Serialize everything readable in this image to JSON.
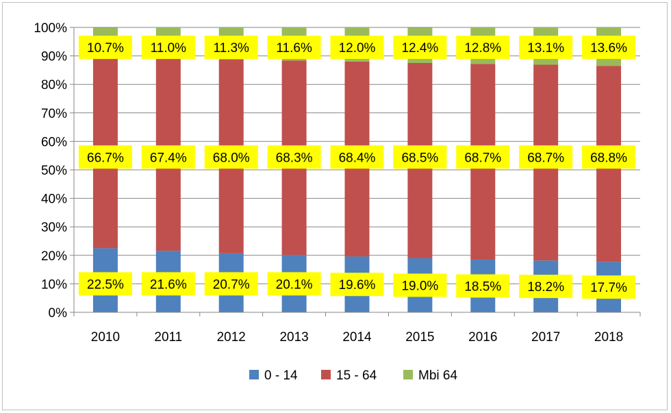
{
  "chart_data": {
    "type": "bar",
    "stacked": true,
    "percent_stacked": true,
    "categories": [
      "2010",
      "2011",
      "2012",
      "2013",
      "2014",
      "2015",
      "2016",
      "2017",
      "2018"
    ],
    "series": [
      {
        "name": "0 - 14",
        "color": "#4f81bd",
        "values": [
          22.5,
          21.6,
          20.7,
          20.1,
          19.6,
          19.0,
          18.5,
          18.2,
          17.7
        ],
        "labels": [
          "22.5%",
          "21.6%",
          "20.7%",
          "20.1%",
          "19.6%",
          "19.0%",
          "18.5%",
          "18.2%",
          "17.7%"
        ]
      },
      {
        "name": "15 - 64",
        "color": "#c0504d",
        "values": [
          66.7,
          67.4,
          68.0,
          68.3,
          68.4,
          68.5,
          68.7,
          68.7,
          68.8
        ],
        "labels": [
          "66.7%",
          "67.4%",
          "68.0%",
          "68.3%",
          "68.4%",
          "68.5%",
          "68.7%",
          "68.7%",
          "68.8%"
        ]
      },
      {
        "name": "Mbi 64",
        "color": "#9bbb59",
        "values": [
          10.7,
          11.0,
          11.3,
          11.6,
          12.0,
          12.4,
          12.8,
          13.1,
          13.6
        ],
        "labels": [
          "10.7%",
          "11.0%",
          "11.3%",
          "11.6%",
          "12.0%",
          "12.4%",
          "12.8%",
          "13.1%",
          "13.6%"
        ]
      }
    ],
    "ylim": [
      0,
      100
    ],
    "yticks": [
      "0%",
      "10%",
      "20%",
      "30%",
      "40%",
      "50%",
      "60%",
      "70%",
      "80%",
      "90%",
      "100%"
    ],
    "grid": true,
    "legend_position": "bottom",
    "label_highlight_color": "#ffff00",
    "title": "",
    "xlabel": "",
    "ylabel": ""
  }
}
